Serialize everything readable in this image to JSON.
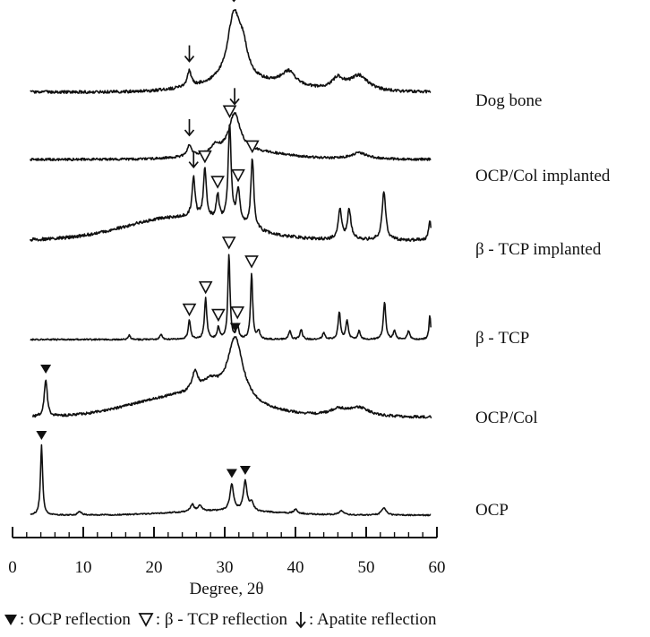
{
  "chart_data": {
    "type": "line",
    "xlabel": "Degree, 2θ",
    "xlim": [
      0,
      60
    ],
    "x_ticks": [
      "0",
      "10",
      "20",
      "30",
      "40",
      "50",
      "60"
    ],
    "grid": false,
    "series": [
      {
        "name": "Dog bone",
        "peaks": [
          {
            "x": 25.0,
            "height": 0.22,
            "width": 0.35,
            "marker": "apatite"
          },
          {
            "x": 31.3,
            "height": 0.95,
            "width": 1.1,
            "marker": "apatite"
          },
          {
            "x": 32.6,
            "height": 0.35,
            "width": 0.8
          },
          {
            "x": 39.0,
            "height": 0.2,
            "width": 1.2
          },
          {
            "x": 46.0,
            "height": 0.16,
            "width": 1.0
          },
          {
            "x": 49.0,
            "height": 0.22,
            "width": 1.6
          }
        ]
      },
      {
        "name": "OCP/Col implanted",
        "peaks": [
          {
            "x": 25.0,
            "height": 0.22,
            "width": 0.35,
            "marker": "apatite"
          },
          {
            "x": 31.4,
            "height": 0.75,
            "width": 1.0,
            "marker": "apatite"
          },
          {
            "x": 28.7,
            "height": 0.15,
            "width": 0.6
          },
          {
            "x": 49.0,
            "height": 0.12,
            "width": 1.5
          }
        ]
      },
      {
        "name": "β - TCP implanted",
        "peaks": [
          {
            "x": 25.6,
            "height": 0.4,
            "width": 0.25,
            "marker": "apatite"
          },
          {
            "x": 27.2,
            "height": 0.5,
            "width": 0.25,
            "marker": "tcp"
          },
          {
            "x": 29.0,
            "height": 0.25,
            "width": 0.25,
            "marker": "tcp"
          },
          {
            "x": 30.7,
            "height": 1.0,
            "width": 0.25,
            "marker": "tcp"
          },
          {
            "x": 31.9,
            "height": 0.35,
            "width": 0.3,
            "marker": "tcp"
          },
          {
            "x": 33.9,
            "height": 0.72,
            "width": 0.25,
            "marker": "tcp"
          },
          {
            "x": 46.3,
            "height": 0.3,
            "width": 0.3
          },
          {
            "x": 47.6,
            "height": 0.3,
            "width": 0.3
          },
          {
            "x": 52.5,
            "height": 0.5,
            "width": 0.3
          },
          {
            "x": 59.0,
            "height": 0.2,
            "width": 0.2
          }
        ]
      },
      {
        "name": "β - TCP",
        "peaks": [
          {
            "x": 25.0,
            "height": 0.22,
            "width": 0.2,
            "marker": "tcp"
          },
          {
            "x": 27.3,
            "height": 0.48,
            "width": 0.2,
            "marker": "tcp"
          },
          {
            "x": 29.1,
            "height": 0.14,
            "width": 0.2,
            "marker": "tcp"
          },
          {
            "x": 30.6,
            "height": 1.0,
            "width": 0.18,
            "marker": "tcp"
          },
          {
            "x": 31.8,
            "height": 0.16,
            "width": 0.2,
            "marker": "tcp"
          },
          {
            "x": 33.8,
            "height": 0.78,
            "width": 0.18,
            "marker": "tcp"
          },
          {
            "x": 16.5,
            "height": 0.05,
            "width": 0.2
          },
          {
            "x": 21.0,
            "height": 0.06,
            "width": 0.2
          },
          {
            "x": 34.8,
            "height": 0.1,
            "width": 0.2
          },
          {
            "x": 39.2,
            "height": 0.1,
            "width": 0.2
          },
          {
            "x": 40.8,
            "height": 0.12,
            "width": 0.2
          },
          {
            "x": 44.0,
            "height": 0.08,
            "width": 0.2
          },
          {
            "x": 46.2,
            "height": 0.32,
            "width": 0.2
          },
          {
            "x": 47.3,
            "height": 0.22,
            "width": 0.2
          },
          {
            "x": 49.0,
            "height": 0.1,
            "width": 0.2
          },
          {
            "x": 52.6,
            "height": 0.44,
            "width": 0.2
          },
          {
            "x": 54.0,
            "height": 0.1,
            "width": 0.2
          },
          {
            "x": 56.0,
            "height": 0.1,
            "width": 0.2
          },
          {
            "x": 59.0,
            "height": 0.28,
            "width": 0.15
          }
        ]
      },
      {
        "name": "OCP/Col",
        "peaks": [
          {
            "x": 4.7,
            "height": 0.6,
            "width": 0.25,
            "marker": "ocp"
          },
          {
            "x": 25.8,
            "height": 0.3,
            "width": 0.5
          },
          {
            "x": 31.5,
            "height": 1.0,
            "width": 1.3,
            "marker": "ocp"
          },
          {
            "x": 28.0,
            "height": 0.2,
            "width": 1.5
          },
          {
            "x": 46.0,
            "height": 0.1,
            "width": 1.5
          },
          {
            "x": 49.0,
            "height": 0.14,
            "width": 1.8
          }
        ]
      },
      {
        "name": "OCP",
        "peaks": [
          {
            "x": 4.1,
            "height": 1.0,
            "width": 0.18,
            "marker": "ocp"
          },
          {
            "x": 9.5,
            "height": 0.05,
            "width": 0.3
          },
          {
            "x": 25.4,
            "height": 0.1,
            "width": 0.3
          },
          {
            "x": 26.5,
            "height": 0.08,
            "width": 0.3
          },
          {
            "x": 31.0,
            "height": 0.38,
            "width": 0.3,
            "marker": "ocp"
          },
          {
            "x": 32.9,
            "height": 0.42,
            "width": 0.3,
            "marker": "ocp"
          },
          {
            "x": 33.8,
            "height": 0.12,
            "width": 0.3
          },
          {
            "x": 40.0,
            "height": 0.06,
            "width": 0.3
          },
          {
            "x": 46.5,
            "height": 0.06,
            "width": 0.4
          },
          {
            "x": 52.5,
            "height": 0.1,
            "width": 0.4
          }
        ]
      }
    ],
    "legend": [
      {
        "symbol": "ocp",
        "label": ": OCP reflection"
      },
      {
        "symbol": "tcp",
        "label": ": β - TCP reflection"
      },
      {
        "symbol": "apatite",
        "label": ": Apatite reflection"
      }
    ]
  }
}
